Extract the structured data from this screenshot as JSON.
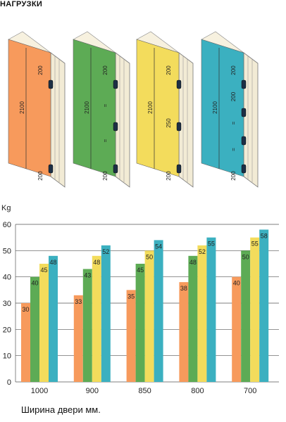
{
  "header": {
    "title": "НАГРУЗКИ"
  },
  "doors": [
    {
      "color": "#F79A5C",
      "height_label": "2100",
      "dims": [
        "200",
        "200"
      ]
    },
    {
      "color": "#5DAB55",
      "height_label": "2100",
      "dims": [
        "200",
        "=",
        "=",
        "200"
      ]
    },
    {
      "color": "#F3DC5C",
      "height_label": "2100",
      "dims": [
        "200",
        "250",
        "200"
      ]
    },
    {
      "color": "#3BB0C0",
      "height_label": "2100",
      "dims": [
        "200",
        "200",
        "=",
        "=",
        "200"
      ]
    }
  ],
  "chart_data": {
    "type": "bar",
    "ylabel": "Kg",
    "xlabel": "Ширина двери мм.",
    "ylim": [
      0,
      60
    ],
    "yticks": [
      "0",
      "10",
      "20",
      "30",
      "40",
      "50",
      "60"
    ],
    "grid": true,
    "categories": [
      "1000",
      "900",
      "850",
      "800",
      "700"
    ],
    "series": [
      {
        "color": "#F79A5C",
        "values": [
          30,
          33,
          35,
          38,
          40
        ]
      },
      {
        "color": "#5DAB55",
        "values": [
          40,
          43,
          45,
          48,
          50
        ]
      },
      {
        "color": "#F3DC5C",
        "values": [
          45,
          48,
          50,
          52,
          55
        ]
      },
      {
        "color": "#3BB0C0",
        "values": [
          48,
          52,
          54,
          55,
          58
        ]
      }
    ]
  }
}
